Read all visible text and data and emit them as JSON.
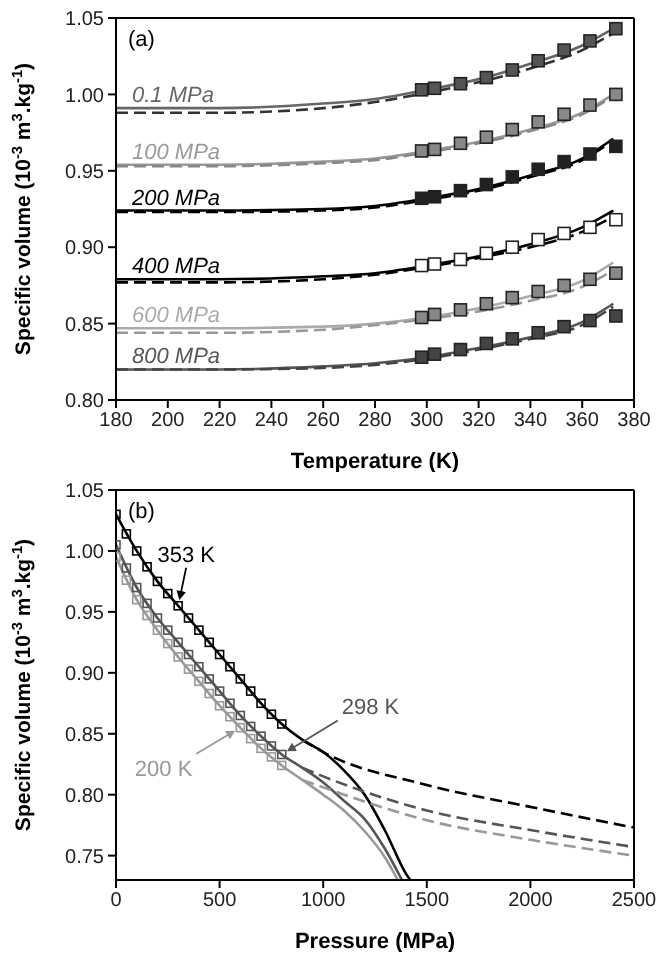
{
  "chart_data": [
    {
      "type": "line",
      "title": "(a)",
      "xlabel": "Temperature (K)",
      "ylabel": "Specific volume (10$^{-3}$ m$^{3}$.kg$^{-1}$)",
      "xlim": [
        180,
        380
      ],
      "xticks": [
        180,
        200,
        220,
        240,
        260,
        280,
        300,
        320,
        340,
        360,
        380
      ],
      "ylim": [
        0.8,
        1.05
      ],
      "yticks": [
        {
          "value": 0.8,
          "label": "0.80"
        },
        0.85,
        {
          "value": 0.9,
          "label": "0.90"
        },
        0.95,
        {
          "value": 1.0,
          "label": "1.00"
        },
        1.05
      ],
      "series": [
        {
          "name": "0.1 MPa",
          "type": "line",
          "line_style": "solid",
          "color": "#666666",
          "x": [
            180,
            220,
            260,
            280,
            300,
            320,
            340,
            360,
            372
          ],
          "values": [
            0.991,
            0.991,
            0.994,
            0.997,
            1.003,
            1.01,
            1.02,
            1.032,
            1.043
          ]
        },
        {
          "type": "line",
          "line_style": "dashed",
          "color": "#333333",
          "x": [
            180,
            220,
            260,
            280,
            300,
            320,
            340,
            360,
            372
          ],
          "values": [
            0.988,
            0.988,
            0.991,
            0.995,
            1.001,
            1.008,
            1.017,
            1.029,
            1.04
          ]
        },
        {
          "type": "scatter",
          "marker": "square",
          "color": "#555555",
          "x": [
            298,
            303,
            313,
            323,
            333,
            343,
            353,
            363,
            373
          ],
          "values": [
            1.003,
            1.004,
            1.007,
            1.011,
            1.016,
            1.022,
            1.029,
            1.035,
            1.043
          ]
        },
        {
          "name": "100 MPa",
          "type": "line",
          "line_style": "solid",
          "color": "#999999",
          "x": [
            180,
            220,
            260,
            280,
            300,
            320,
            340,
            360,
            372
          ],
          "values": [
            0.954,
            0.954,
            0.956,
            0.958,
            0.963,
            0.969,
            0.977,
            0.988,
            1.0
          ]
        },
        {
          "type": "line",
          "line_style": "dashed",
          "color": "#888888",
          "x": [
            180,
            220,
            260,
            280,
            300,
            320,
            340,
            360,
            372
          ],
          "values": [
            0.953,
            0.953,
            0.955,
            0.957,
            0.962,
            0.968,
            0.976,
            0.987,
            0.999
          ]
        },
        {
          "type": "scatter",
          "marker": "square",
          "color": "#888888",
          "x": [
            298,
            303,
            313,
            323,
            333,
            343,
            353,
            363,
            373
          ],
          "values": [
            0.963,
            0.964,
            0.968,
            0.972,
            0.977,
            0.982,
            0.987,
            0.993,
            1.0
          ]
        },
        {
          "name": "200 MPa",
          "type": "line",
          "line_style": "solid",
          "color": "#000000",
          "x": [
            180,
            220,
            260,
            280,
            300,
            320,
            340,
            360,
            372
          ],
          "values": [
            0.924,
            0.924,
            0.925,
            0.927,
            0.932,
            0.938,
            0.947,
            0.958,
            0.971
          ]
        },
        {
          "type": "line",
          "line_style": "dashed",
          "color": "#000000",
          "x": [
            180,
            220,
            260,
            280,
            300,
            320,
            340,
            360,
            372
          ],
          "values": [
            0.923,
            0.923,
            0.924,
            0.926,
            0.931,
            0.937,
            0.946,
            0.957,
            0.97
          ]
        },
        {
          "type": "scatter",
          "marker": "square",
          "color": "#222222",
          "x": [
            298,
            303,
            313,
            323,
            333,
            343,
            353,
            363,
            373
          ],
          "values": [
            0.932,
            0.933,
            0.937,
            0.941,
            0.946,
            0.951,
            0.956,
            0.961,
            0.966
          ]
        },
        {
          "name": "400 MPa",
          "type": "line",
          "line_style": "solid",
          "color": "#000000",
          "x": [
            180,
            220,
            260,
            280,
            300,
            320,
            340,
            360,
            372
          ],
          "values": [
            0.879,
            0.879,
            0.881,
            0.883,
            0.888,
            0.894,
            0.902,
            0.913,
            0.924
          ]
        },
        {
          "type": "line",
          "line_style": "dashed",
          "color": "#000000",
          "x": [
            180,
            220,
            260,
            280,
            300,
            320,
            340,
            360,
            372
          ],
          "values": [
            0.877,
            0.877,
            0.879,
            0.882,
            0.887,
            0.893,
            0.9,
            0.91,
            0.92
          ]
        },
        {
          "type": "scatter",
          "marker": "square",
          "color": "#ffffff",
          "x": [
            298,
            303,
            313,
            323,
            333,
            343,
            353,
            363,
            373
          ],
          "values": [
            0.888,
            0.889,
            0.892,
            0.896,
            0.9,
            0.905,
            0.909,
            0.913,
            0.918
          ]
        },
        {
          "name": "600 MPa",
          "type": "line",
          "line_style": "solid",
          "color": "#aaaaaa",
          "x": [
            180,
            220,
            260,
            280,
            300,
            320,
            340,
            360,
            372
          ],
          "values": [
            0.847,
            0.847,
            0.848,
            0.85,
            0.854,
            0.86,
            0.868,
            0.878,
            0.89
          ]
        },
        {
          "type": "line",
          "line_style": "dashed",
          "color": "#999999",
          "x": [
            180,
            220,
            260,
            280,
            300,
            320,
            340,
            360,
            372
          ],
          "values": [
            0.844,
            0.844,
            0.846,
            0.849,
            0.853,
            0.858,
            0.865,
            0.874,
            0.885
          ]
        },
        {
          "type": "scatter",
          "marker": "square",
          "color": "#888888",
          "x": [
            298,
            303,
            313,
            323,
            333,
            343,
            353,
            363,
            373
          ],
          "values": [
            0.854,
            0.856,
            0.859,
            0.863,
            0.867,
            0.871,
            0.875,
            0.879,
            0.883
          ]
        },
        {
          "name": "800 MPa",
          "type": "line",
          "line_style": "solid",
          "color": "#555555",
          "x": [
            180,
            220,
            260,
            280,
            300,
            320,
            340,
            360,
            372
          ],
          "values": [
            0.82,
            0.82,
            0.822,
            0.824,
            0.828,
            0.834,
            0.841,
            0.851,
            0.863
          ]
        },
        {
          "type": "line",
          "line_style": "dashed",
          "color": "#444444",
          "x": [
            180,
            220,
            260,
            280,
            300,
            320,
            340,
            360,
            372
          ],
          "values": [
            0.82,
            0.82,
            0.821,
            0.823,
            0.827,
            0.833,
            0.84,
            0.849,
            0.861
          ]
        },
        {
          "type": "scatter",
          "marker": "square",
          "color": "#444444",
          "x": [
            298,
            303,
            313,
            323,
            333,
            343,
            353,
            363,
            373
          ],
          "values": [
            0.828,
            0.83,
            0.833,
            0.837,
            0.84,
            0.844,
            0.848,
            0.852,
            0.855
          ]
        }
      ]
    },
    {
      "type": "line",
      "title": "(b)",
      "xlabel": "Pressure (MPa)",
      "ylabel": "Specific volume (10$^{-3}$ m$^{3}$.kg$^{-1}$)",
      "xlim": [
        0,
        2500
      ],
      "xticks": [
        0,
        500,
        1000,
        1500,
        2000,
        2500
      ],
      "ylim": [
        0.73,
        1.05
      ],
      "yticks": [
        0.75,
        {
          "value": 0.8,
          "label": "0.80"
        },
        0.85,
        {
          "value": 0.9,
          "label": "0.90"
        },
        0.95,
        {
          "value": 1.0,
          "label": "1.00"
        },
        1.05
      ],
      "series": [
        {
          "name": "353 K",
          "type": "line",
          "line_style": "solid",
          "color": "#000000",
          "x": [
            0,
            100,
            200,
            300,
            400,
            500,
            600,
            700,
            800,
            900,
            1000,
            1100,
            1200,
            1300,
            1400,
            1420
          ],
          "values": [
            1.03,
            1.0,
            0.975,
            0.955,
            0.935,
            0.915,
            0.895,
            0.875,
            0.858,
            0.845,
            0.835,
            0.82,
            0.8,
            0.77,
            0.735,
            0.73
          ]
        },
        {
          "type": "line",
          "line_style": "dashed",
          "color": "#000000",
          "x": [
            900,
            1000,
            1500,
            2000,
            2500
          ],
          "values": [
            0.845,
            0.835,
            0.808,
            0.79,
            0.773
          ]
        },
        {
          "type": "scatter",
          "marker": "square",
          "color": "#000000",
          "x": [
            0,
            50,
            100,
            150,
            200,
            250,
            300,
            350,
            400,
            450,
            500,
            550,
            600,
            650,
            700,
            750,
            800
          ],
          "values": [
            1.03,
            1.014,
            1.0,
            0.987,
            0.975,
            0.965,
            0.955,
            0.945,
            0.935,
            0.925,
            0.915,
            0.905,
            0.895,
            0.885,
            0.875,
            0.866,
            0.858
          ]
        },
        {
          "name": "298 K",
          "type": "line",
          "line_style": "solid",
          "color": "#555555",
          "x": [
            0,
            100,
            200,
            300,
            400,
            500,
            600,
            700,
            800,
            900,
            1000,
            1100,
            1200,
            1300,
            1380
          ],
          "values": [
            1.005,
            0.97,
            0.945,
            0.925,
            0.905,
            0.885,
            0.865,
            0.848,
            0.833,
            0.822,
            0.81,
            0.795,
            0.78,
            0.755,
            0.73
          ]
        },
        {
          "type": "line",
          "line_style": "dashed",
          "color": "#555555",
          "x": [
            900,
            1000,
            1500,
            2000,
            2500
          ],
          "values": [
            0.822,
            0.815,
            0.787,
            0.771,
            0.757
          ]
        },
        {
          "type": "scatter",
          "marker": "square",
          "color": "#555555",
          "x": [
            0,
            50,
            100,
            150,
            200,
            250,
            300,
            350,
            400,
            450,
            500,
            550,
            600,
            650,
            700,
            750,
            800
          ],
          "values": [
            1.005,
            0.986,
            0.97,
            0.957,
            0.945,
            0.935,
            0.925,
            0.915,
            0.905,
            0.895,
            0.885,
            0.875,
            0.865,
            0.856,
            0.848,
            0.84,
            0.833
          ]
        },
        {
          "name": "200 K",
          "type": "line",
          "line_style": "solid",
          "color": "#999999",
          "x": [
            0,
            100,
            200,
            300,
            400,
            500,
            600,
            700,
            800,
            900,
            1000,
            1100,
            1200,
            1300,
            1360
          ],
          "values": [
            0.995,
            0.96,
            0.935,
            0.913,
            0.893,
            0.873,
            0.855,
            0.838,
            0.824,
            0.812,
            0.8,
            0.787,
            0.77,
            0.748,
            0.73
          ]
        },
        {
          "type": "line",
          "line_style": "dashed",
          "color": "#999999",
          "x": [
            900,
            1000,
            1500,
            2000,
            2500
          ],
          "values": [
            0.812,
            0.806,
            0.779,
            0.763,
            0.75
          ]
        },
        {
          "type": "scatter",
          "marker": "square",
          "color": "#999999",
          "x": [
            0,
            50,
            100,
            150,
            200,
            250,
            300,
            350,
            400,
            450,
            500,
            550,
            600,
            650,
            700,
            750,
            800
          ],
          "values": [
            0.995,
            0.976,
            0.96,
            0.947,
            0.935,
            0.924,
            0.913,
            0.903,
            0.893,
            0.883,
            0.873,
            0.864,
            0.855,
            0.846,
            0.838,
            0.831,
            0.824
          ]
        }
      ]
    }
  ]
}
